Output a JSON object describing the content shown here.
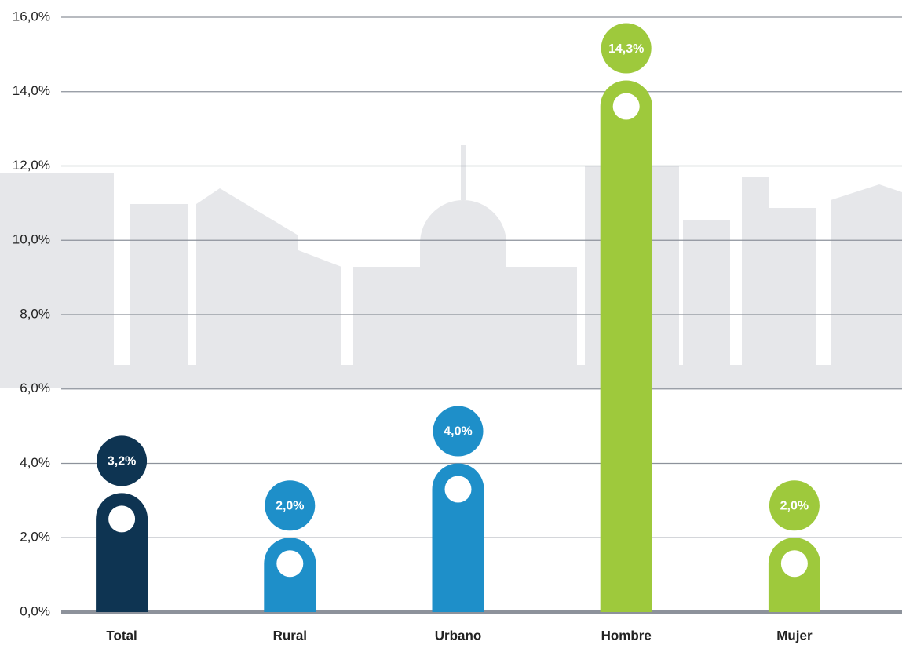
{
  "chart_data": {
    "type": "bar",
    "categories": [
      "Total",
      "Rural",
      "Urbano",
      "Hombre",
      "Mujer"
    ],
    "values": [
      3.2,
      2.0,
      4.0,
      14.3,
      2.0
    ],
    "value_labels": [
      "3,2%",
      "2,0%",
      "4,0%",
      "14,3%",
      "2,0%"
    ],
    "colors": [
      "#0e3452",
      "#1e8fc9",
      "#1e8fc9",
      "#9ec93c",
      "#9ec93c"
    ],
    "ylim": [
      0,
      16
    ],
    "yticks": [
      {
        "value": 0,
        "label": "0,0%"
      },
      {
        "value": 2,
        "label": "2,0%"
      },
      {
        "value": 4,
        "label": "4,0%"
      },
      {
        "value": 6,
        "label": "6,0%"
      },
      {
        "value": 8,
        "label": "8,0%"
      },
      {
        "value": 10,
        "label": "10,0%"
      },
      {
        "value": 12,
        "label": "12,0%"
      },
      {
        "value": 14,
        "label": "14,0%"
      },
      {
        "value": 16,
        "label": "16,0%"
      }
    ],
    "grid": true
  }
}
